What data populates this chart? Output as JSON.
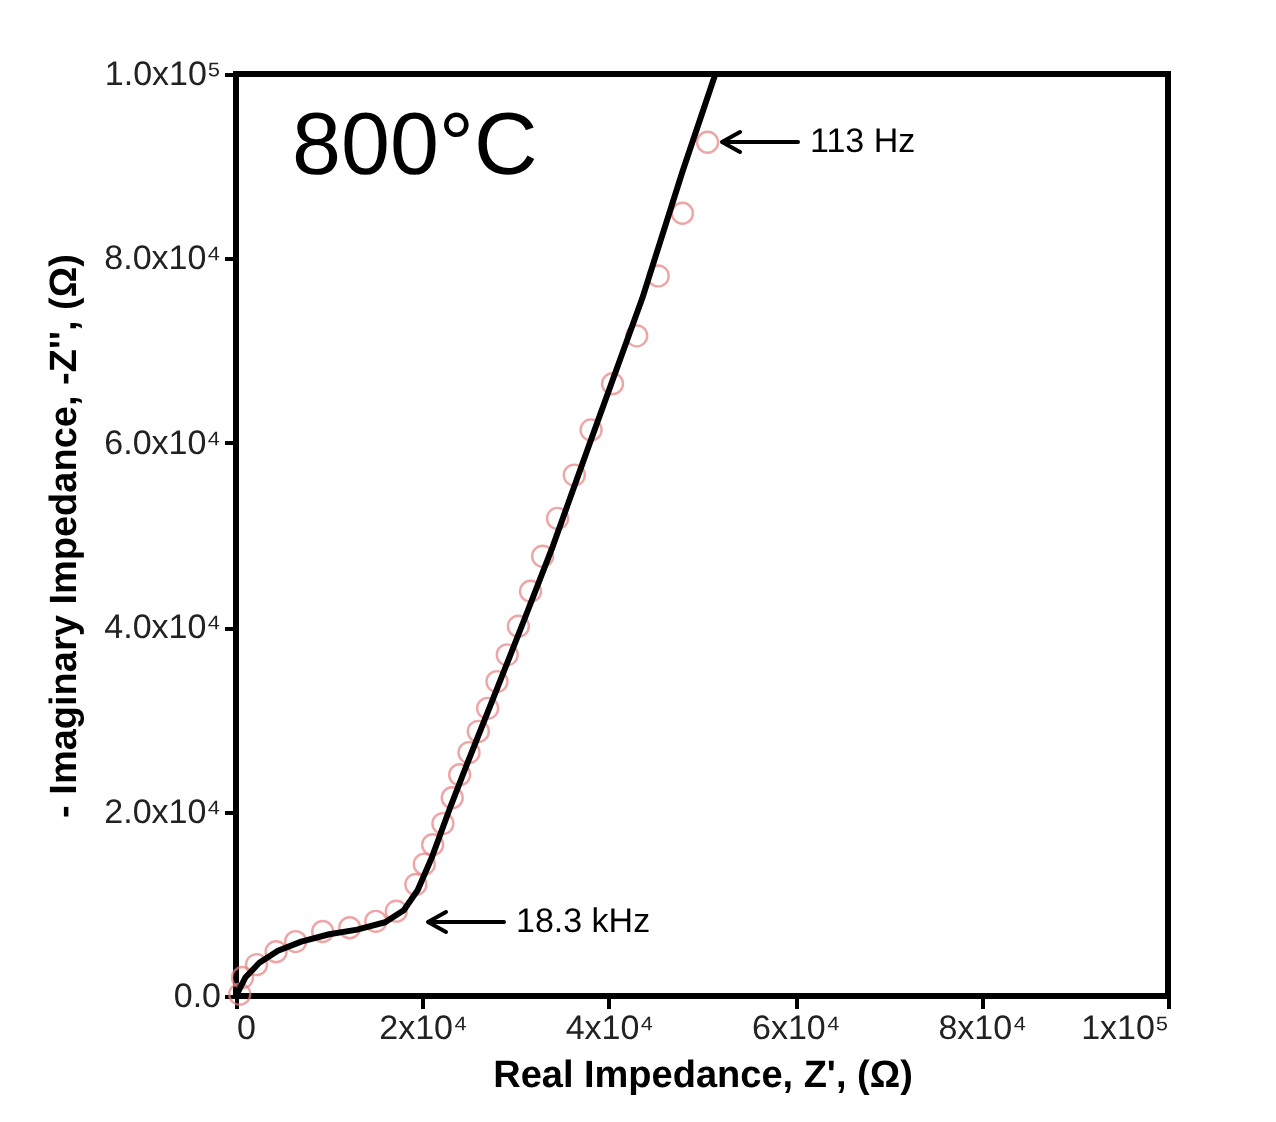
{
  "chart_data": {
    "type": "scatter",
    "xlabel": "Real Impedance, Z', (Ω)",
    "ylabel": "- Imaginary Impedance, -Z'', (Ω)",
    "xlim": [
      0,
      100000
    ],
    "ylim": [
      0,
      100000
    ],
    "xticks": [
      0,
      {
        "value": 20000,
        "label": "2x10⁴"
      },
      {
        "value": 40000,
        "label": "4x10⁴"
      },
      {
        "value": 60000,
        "label": "6x10⁴"
      },
      {
        "value": 80000,
        "label": "8x10⁴"
      },
      {
        "value": 100000,
        "label": "1x10⁵"
      }
    ],
    "yticks": [
      {
        "value": 0,
        "label": "0.0"
      },
      {
        "value": 20000,
        "label": "2.0x10⁴"
      },
      {
        "value": 40000,
        "label": "4.0x10⁴"
      },
      {
        "value": 60000,
        "label": "6.0x10⁴"
      },
      {
        "value": 80000,
        "label": "8.0x10⁴"
      },
      {
        "value": 100000,
        "label": "1.0x10⁵"
      }
    ],
    "grid": false,
    "series": [
      {
        "marker": "circle",
        "color": "#e88080",
        "x": [
          400,
          700,
          2200,
          4300,
          6400,
          9300,
          12200,
          15000,
          17200,
          19300,
          20200,
          21100,
          22200,
          23200,
          24000,
          25000,
          26000,
          27000,
          28000,
          29100,
          30300,
          31600,
          32900,
          34500,
          36300,
          38100,
          40400,
          43000,
          45300,
          47900,
          50600
        ],
        "values": [
          200,
          2000,
          3400,
          4800,
          5900,
          7000,
          7400,
          8100,
          9200,
          12100,
          14300,
          16400,
          18700,
          21500,
          24000,
          26400,
          28700,
          31200,
          34100,
          37000,
          40100,
          43900,
          47700,
          51800,
          56500,
          61400,
          66400,
          71600,
          78100,
          84900,
          92600
        ]
      },
      {
        "type": "line",
        "color": "#000000",
        "line_style": "solid",
        "x": [
          0,
          1000,
          2500,
          4500,
          7000,
          10000,
          13000,
          16000,
          18000,
          19500,
          21000,
          23000,
          25000,
          28000,
          31000,
          34000,
          37900,
          43600,
          47900,
          51400
        ],
        "values": [
          0,
          2000,
          3600,
          4900,
          5900,
          6700,
          7200,
          8000,
          9300,
          11500,
          15000,
          20500,
          25700,
          33300,
          41000,
          48800,
          59800,
          75700,
          89400,
          99900
        ]
      }
    ],
    "annotations": [
      "800°C",
      "113 Hz",
      "18.3 kHz"
    ]
  }
}
